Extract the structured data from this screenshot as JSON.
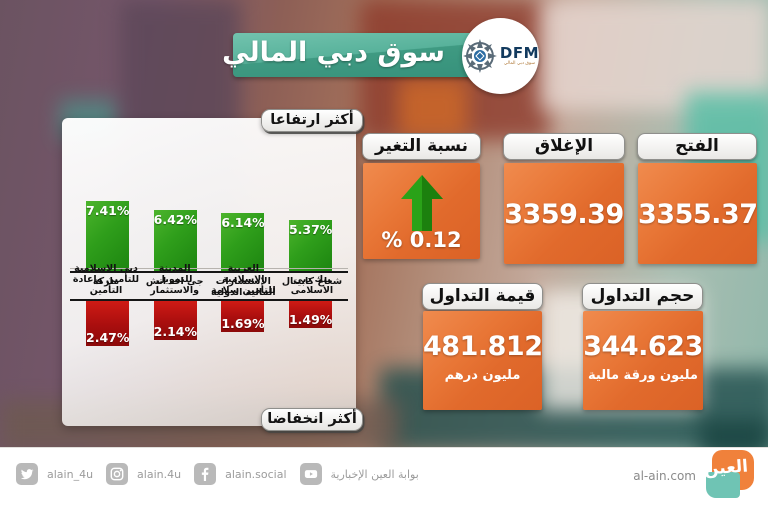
{
  "header": {
    "title": "سوق دبي المالي",
    "logo": {
      "abbr": "DFM",
      "sub": "سوق دبي المالي"
    }
  },
  "chart_data": [
    {
      "type": "bar",
      "title": "أكثر ارتفاعا",
      "categories": [
        "ماركة",
        "جى اف اتش",
        "الاستشارات المالية الدولية",
        "شعاع كابيتال"
      ],
      "values": [
        7.41,
        6.42,
        6.14,
        5.37
      ],
      "unit": "%",
      "bar_color": "#2f9e1b",
      "orientation": "up",
      "legend": "none",
      "grid": false
    },
    {
      "type": "bar",
      "title": "أكثر انخفاضا",
      "categories": [
        "دبى الاسلامية للتأمين وإعادة التأمين",
        "المدينة للتمويل والاستثمار",
        "العربية الاسلامية للتأمين سلامة",
        "بنك دبى الاسلامى"
      ],
      "values": [
        2.47,
        2.14,
        1.69,
        1.49
      ],
      "unit": "%",
      "bar_color": "#b30f0f",
      "orientation": "down",
      "legend": "none",
      "grid": false
    }
  ],
  "stats": {
    "open": {
      "label": "الفتح",
      "value": "3355.37"
    },
    "close": {
      "label": "الإغلاق",
      "value": "3359.39"
    },
    "change": {
      "label": "نسبة التغير",
      "value": "% 0.12",
      "direction": "up"
    },
    "volume": {
      "label": "حجم التداول",
      "value": "344.623",
      "unit": "مليون ورقة مالية"
    },
    "value": {
      "label": "قيمة التداول",
      "value": "481.812",
      "unit": "مليون درهم"
    }
  },
  "footer": {
    "twitter": "alain_4u",
    "instagram": "alain.4u",
    "facebook": "alain.social",
    "youtube": "بوابة العين الإخبارية",
    "website": "al-ain.com",
    "logo_text": "العين"
  },
  "colors": {
    "positive": "#2f9e1b",
    "negative": "#b30f0f",
    "accent_orange": "#e4702f",
    "header_teal": "#4aa68e"
  }
}
